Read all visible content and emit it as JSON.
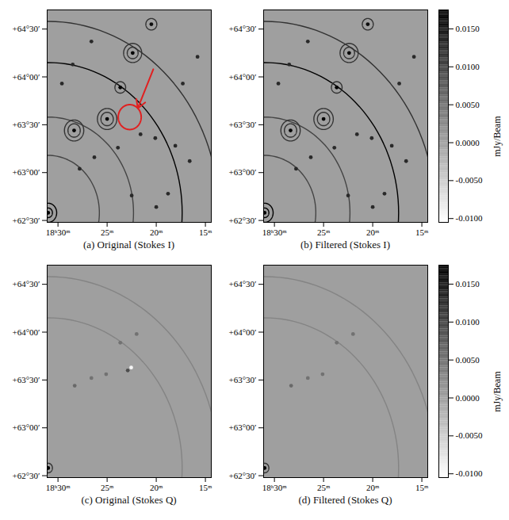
{
  "chart_data": [
    {
      "type": "image",
      "title": "(a) Original (Stokes I)",
      "xlim": [
        31.1,
        14.4
      ],
      "ylim": [
        62.48,
        64.7
      ],
      "xticks": [
        {
          "value": 30,
          "label": "18ʰ30ᵐ"
        },
        {
          "value": 25,
          "label": "25ᵐ"
        },
        {
          "value": 20,
          "label": "20ᵐ"
        },
        {
          "value": 15,
          "label": "15ᵐ"
        }
      ],
      "yticks": [
        {
          "value": 62.5,
          "label": "+62°30′"
        },
        {
          "value": 63,
          "label": "+63°00′"
        },
        {
          "value": 63.5,
          "label": "+63°30′"
        },
        {
          "value": 64,
          "label": "+64°00′"
        },
        {
          "value": 64.5,
          "label": "+64°30′"
        }
      ],
      "background": 0,
      "sources": [
        {
          "ra": 31.0,
          "dec": 62.58,
          "flux": 0.0175
        },
        {
          "ra": 28.36,
          "dec": 63.44,
          "flux": 0.0175
        },
        {
          "ra": 25.0,
          "dec": 63.56,
          "flux": 0.0175
        },
        {
          "ra": 23.66,
          "dec": 63.89,
          "flux": 0.0175
        },
        {
          "ra": 22.4,
          "dec": 64.25,
          "flux": 0.0175
        },
        {
          "ra": 20.5,
          "dec": 64.55,
          "flux": 0.016
        },
        {
          "ra": 26.3,
          "dec": 63.16,
          "flux": 0.013
        },
        {
          "ra": 23.9,
          "dec": 63.26,
          "flux": 0.013
        },
        {
          "ra": 21.6,
          "dec": 63.4,
          "flux": 0.013
        },
        {
          "ra": 20.1,
          "dec": 63.36,
          "flux": 0.013
        },
        {
          "ra": 18.06,
          "dec": 63.28,
          "flux": 0.013
        },
        {
          "ra": 27.8,
          "dec": 63.04,
          "flux": 0.013
        },
        {
          "ra": 29.6,
          "dec": 63.93,
          "flux": 0.013
        },
        {
          "ra": 22.5,
          "dec": 62.76,
          "flux": 0.013
        },
        {
          "ra": 20.0,
          "dec": 62.64,
          "flux": 0.013
        },
        {
          "ra": 18.8,
          "dec": 62.78,
          "flux": 0.013
        },
        {
          "ra": 16.6,
          "dec": 63.12,
          "flux": 0.013
        },
        {
          "ra": 17.3,
          "dec": 63.93,
          "flux": 0.013
        },
        {
          "ra": 26.6,
          "dec": 64.37,
          "flux": 0.013
        },
        {
          "ra": 28.5,
          "dec": 64.13,
          "flux": 0.013
        },
        {
          "ra": 15.8,
          "dec": 64.21,
          "flux": 0.013
        }
      ],
      "rings": [
        {
          "ra": 31.0,
          "dec": 62.58,
          "radius": 0.05,
          "flux": 0.0175
        },
        {
          "ra": 31.0,
          "dec": 62.58,
          "radius": 0.1,
          "flux": 0.0175
        },
        {
          "ra": 31.0,
          "dec": 62.58,
          "radius": 0.6,
          "flux": 0.01
        },
        {
          "ra": 31.0,
          "dec": 62.58,
          "radius": 1.0,
          "flux": 0.01
        },
        {
          "ra": 31.0,
          "dec": 62.58,
          "radius": 1.57,
          "flux": 0.0175
        },
        {
          "ra": 31.0,
          "dec": 62.58,
          "radius": 2.0,
          "flux": 0.012
        },
        {
          "ra": 28.36,
          "dec": 63.44,
          "radius": 0.07,
          "flux": 0.012
        },
        {
          "ra": 28.36,
          "dec": 63.44,
          "radius": 0.11,
          "flux": 0.012
        },
        {
          "ra": 25.0,
          "dec": 63.56,
          "radius": 0.07,
          "flux": 0.012
        },
        {
          "ra": 25.0,
          "dec": 63.56,
          "radius": 0.11,
          "flux": 0.012
        },
        {
          "ra": 23.66,
          "dec": 63.89,
          "radius": 0.06,
          "flux": 0.012
        },
        {
          "ra": 22.4,
          "dec": 64.25,
          "radius": 0.06,
          "flux": 0.012
        },
        {
          "ra": 22.4,
          "dec": 64.25,
          "radius": 0.1,
          "flux": 0.012
        },
        {
          "ra": 20.5,
          "dec": 64.55,
          "radius": 0.06,
          "flux": 0.012
        }
      ],
      "highlight": {
        "ra": 22.7,
        "dec": 63.58,
        "radius": 0.13,
        "color": "#e02020"
      }
    },
    {
      "type": "image",
      "title": "(b) Filtered (Stokes I)",
      "xlim": [
        31.1,
        14.4
      ],
      "ylim": [
        62.48,
        64.7
      ],
      "xticks": [
        {
          "value": 30,
          "label": "18ʰ30ᵐ"
        },
        {
          "value": 25,
          "label": "25ᵐ"
        },
        {
          "value": 20,
          "label": "20ᵐ"
        },
        {
          "value": 15,
          "label": "15ᵐ"
        }
      ],
      "yticks": [
        {
          "value": 62.5,
          "label": "+62°30′"
        },
        {
          "value": 63,
          "label": "+63°00′"
        },
        {
          "value": 63.5,
          "label": "+63°30′"
        },
        {
          "value": 64,
          "label": "+64°00′"
        },
        {
          "value": 64.5,
          "label": "+64°30′"
        }
      ],
      "background": 0,
      "sources": [
        {
          "ra": 31.0,
          "dec": 62.58,
          "flux": 0.0175
        },
        {
          "ra": 28.36,
          "dec": 63.44,
          "flux": 0.0175
        },
        {
          "ra": 25.0,
          "dec": 63.56,
          "flux": 0.0175
        },
        {
          "ra": 23.66,
          "dec": 63.89,
          "flux": 0.0175
        },
        {
          "ra": 22.4,
          "dec": 64.25,
          "flux": 0.0175
        },
        {
          "ra": 20.5,
          "dec": 64.55,
          "flux": 0.016
        },
        {
          "ra": 26.3,
          "dec": 63.16,
          "flux": 0.013
        },
        {
          "ra": 23.9,
          "dec": 63.26,
          "flux": 0.013
        },
        {
          "ra": 21.6,
          "dec": 63.4,
          "flux": 0.013
        },
        {
          "ra": 20.1,
          "dec": 63.36,
          "flux": 0.013
        },
        {
          "ra": 18.06,
          "dec": 63.28,
          "flux": 0.013
        },
        {
          "ra": 27.8,
          "dec": 63.04,
          "flux": 0.013
        },
        {
          "ra": 29.6,
          "dec": 63.93,
          "flux": 0.013
        },
        {
          "ra": 22.5,
          "dec": 62.76,
          "flux": 0.013
        },
        {
          "ra": 20.0,
          "dec": 62.64,
          "flux": 0.013
        },
        {
          "ra": 18.8,
          "dec": 62.78,
          "flux": 0.013
        },
        {
          "ra": 16.6,
          "dec": 63.12,
          "flux": 0.013
        },
        {
          "ra": 17.3,
          "dec": 63.93,
          "flux": 0.013
        },
        {
          "ra": 26.6,
          "dec": 64.37,
          "flux": 0.013
        },
        {
          "ra": 28.5,
          "dec": 64.13,
          "flux": 0.013
        },
        {
          "ra": 15.8,
          "dec": 64.21,
          "flux": 0.013
        }
      ],
      "rings": [
        {
          "ra": 31.0,
          "dec": 62.58,
          "radius": 0.05,
          "flux": 0.0175
        },
        {
          "ra": 31.0,
          "dec": 62.58,
          "radius": 0.1,
          "flux": 0.0175
        },
        {
          "ra": 31.0,
          "dec": 62.58,
          "radius": 0.6,
          "flux": 0.01
        },
        {
          "ra": 31.0,
          "dec": 62.58,
          "radius": 1.0,
          "flux": 0.01
        },
        {
          "ra": 31.0,
          "dec": 62.58,
          "radius": 1.57,
          "flux": 0.0175
        },
        {
          "ra": 31.0,
          "dec": 62.58,
          "radius": 2.0,
          "flux": 0.012
        },
        {
          "ra": 28.36,
          "dec": 63.44,
          "radius": 0.07,
          "flux": 0.012
        },
        {
          "ra": 28.36,
          "dec": 63.44,
          "radius": 0.11,
          "flux": 0.012
        },
        {
          "ra": 25.0,
          "dec": 63.56,
          "radius": 0.07,
          "flux": 0.012
        },
        {
          "ra": 25.0,
          "dec": 63.56,
          "radius": 0.11,
          "flux": 0.012
        },
        {
          "ra": 23.66,
          "dec": 63.89,
          "radius": 0.06,
          "flux": 0.012
        },
        {
          "ra": 22.4,
          "dec": 64.25,
          "radius": 0.06,
          "flux": 0.012
        },
        {
          "ra": 22.4,
          "dec": 64.25,
          "radius": 0.1,
          "flux": 0.012
        },
        {
          "ra": 20.5,
          "dec": 64.55,
          "radius": 0.06,
          "flux": 0.012
        }
      ],
      "colorbar": {
        "label": "mJy/Beam",
        "range": [
          -0.0105,
          0.0175
        ],
        "ticks": [
          {
            "value": -0.01,
            "label": "-0.0100"
          },
          {
            "value": -0.005,
            "label": "-0.0050"
          },
          {
            "value": 0,
            "label": "0.0000"
          },
          {
            "value": 0.005,
            "label": "0.0050"
          },
          {
            "value": 0.01,
            "label": "0.0100"
          },
          {
            "value": 0.015,
            "label": "0.0150"
          }
        ]
      }
    },
    {
      "type": "image",
      "title": "(c) Original (Stokes Q)",
      "xlim": [
        31.1,
        14.4
      ],
      "ylim": [
        62.48,
        64.7
      ],
      "xticks": [
        {
          "value": 30,
          "label": "18ʰ30ᵐ"
        },
        {
          "value": 25,
          "label": "25ᵐ"
        },
        {
          "value": 20,
          "label": "20ᵐ"
        },
        {
          "value": 15,
          "label": "15ᵐ"
        }
      ],
      "yticks": [
        {
          "value": 62.5,
          "label": "+62°30′"
        },
        {
          "value": 63,
          "label": "+63°00′"
        },
        {
          "value": 63.5,
          "label": "+63°30′"
        },
        {
          "value": 64,
          "label": "+64°00′"
        },
        {
          "value": 64.5,
          "label": "+64°30′"
        }
      ],
      "background": 0,
      "sources": [
        {
          "ra": 31.0,
          "dec": 62.58,
          "flux": 0.0175
        },
        {
          "ra": 28.3,
          "dec": 63.44,
          "flux": 0.006
        },
        {
          "ra": 25.1,
          "dec": 63.56,
          "flux": 0.005
        },
        {
          "ra": 23.66,
          "dec": 63.89,
          "flux": 0.005
        },
        {
          "ra": 22.0,
          "dec": 63.98,
          "flux": 0.005
        },
        {
          "ra": 26.6,
          "dec": 63.52,
          "flux": 0.005
        },
        {
          "ra": 22.9,
          "dec": 63.6,
          "flux": 0.009
        },
        {
          "ra": 22.55,
          "dec": 63.63,
          "flux": -0.0095
        }
      ],
      "rings": [
        {
          "ra": 31.0,
          "dec": 62.58,
          "radius": 0.05,
          "flux": 0.012
        },
        {
          "ra": 31.0,
          "dec": 62.58,
          "radius": 1.57,
          "flux": 0.003
        },
        {
          "ra": 31.0,
          "dec": 62.58,
          "radius": 2.0,
          "flux": 0.003
        }
      ]
    },
    {
      "type": "image",
      "title": "(d) Filtered (Stokes Q)",
      "xlim": [
        31.1,
        14.4
      ],
      "ylim": [
        62.48,
        64.7
      ],
      "xticks": [
        {
          "value": 30,
          "label": "18ʰ30ᵐ"
        },
        {
          "value": 25,
          "label": "25ᵐ"
        },
        {
          "value": 20,
          "label": "20ᵐ"
        },
        {
          "value": 15,
          "label": "15ᵐ"
        }
      ],
      "yticks": [
        {
          "value": 62.5,
          "label": "+62°30′"
        },
        {
          "value": 63,
          "label": "+63°00′"
        },
        {
          "value": 63.5,
          "label": "+63°30′"
        },
        {
          "value": 64,
          "label": "+64°00′"
        },
        {
          "value": 64.5,
          "label": "+64°30′"
        }
      ],
      "background": 0,
      "sources": [
        {
          "ra": 31.0,
          "dec": 62.58,
          "flux": 0.0175
        },
        {
          "ra": 28.3,
          "dec": 63.44,
          "flux": 0.006
        },
        {
          "ra": 25.1,
          "dec": 63.56,
          "flux": 0.005
        },
        {
          "ra": 23.66,
          "dec": 63.89,
          "flux": 0.005
        },
        {
          "ra": 22.0,
          "dec": 63.98,
          "flux": 0.005
        },
        {
          "ra": 26.6,
          "dec": 63.52,
          "flux": 0.005
        }
      ],
      "rings": [
        {
          "ra": 31.0,
          "dec": 62.58,
          "radius": 0.05,
          "flux": 0.012
        },
        {
          "ra": 31.0,
          "dec": 62.58,
          "radius": 1.57,
          "flux": 0.003
        },
        {
          "ra": 31.0,
          "dec": 62.58,
          "radius": 2.0,
          "flux": 0.003
        }
      ],
      "colorbar": {
        "label": "mJy/Beam",
        "range": [
          -0.0105,
          0.0175
        ],
        "ticks": [
          {
            "value": -0.01,
            "label": "-0.0100"
          },
          {
            "value": -0.005,
            "label": "-0.0050"
          },
          {
            "value": 0,
            "label": "0.0000"
          },
          {
            "value": 0.005,
            "label": "0.0050"
          },
          {
            "value": 0.01,
            "label": "0.0100"
          },
          {
            "value": 0.015,
            "label": "0.0150"
          }
        ]
      }
    }
  ]
}
